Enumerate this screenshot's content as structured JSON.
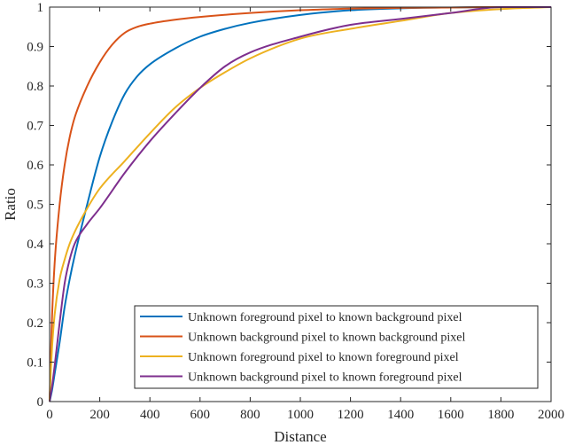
{
  "chart_data": {
    "type": "line",
    "title": "",
    "xlabel": "Distance",
    "ylabel": "Ratio",
    "xlim": [
      0,
      2000
    ],
    "ylim": [
      0,
      1
    ],
    "xticks": [
      0,
      200,
      400,
      600,
      800,
      1000,
      1200,
      1400,
      1600,
      1800,
      2000
    ],
    "yticks": [
      0,
      0.1,
      0.2,
      0.3,
      0.4,
      0.5,
      0.6,
      0.7,
      0.8,
      0.9,
      1
    ],
    "grid": false,
    "legend_position": "bottom-right",
    "series": [
      {
        "name": "Unknown foreground pixel to known background pixel",
        "color": "#0072BD",
        "x": [
          0,
          10,
          20,
          40,
          60,
          80,
          100,
          150,
          200,
          250,
          300,
          350,
          400,
          500,
          600,
          700,
          800,
          1000,
          1200,
          1400,
          1600,
          1800,
          2000
        ],
        "y": [
          0,
          0.03,
          0.07,
          0.15,
          0.24,
          0.31,
          0.37,
          0.5,
          0.62,
          0.71,
          0.78,
          0.825,
          0.855,
          0.895,
          0.925,
          0.945,
          0.96,
          0.98,
          0.992,
          0.997,
          0.999,
          1.0,
          1.0
        ]
      },
      {
        "name": "Unknown background pixel to known background pixel",
        "color": "#D95319",
        "x": [
          0,
          5,
          10,
          20,
          40,
          60,
          80,
          100,
          150,
          200,
          250,
          300,
          350,
          400,
          500,
          600,
          800,
          1000,
          1200,
          1400,
          1600,
          1800,
          2000
        ],
        "y": [
          0,
          0.12,
          0.22,
          0.35,
          0.5,
          0.6,
          0.67,
          0.72,
          0.8,
          0.86,
          0.905,
          0.935,
          0.95,
          0.958,
          0.968,
          0.975,
          0.985,
          0.992,
          0.996,
          0.998,
          0.999,
          1.0,
          1.0
        ]
      },
      {
        "name": "Unknown foreground pixel to known foreground pixel",
        "color": "#EDB120",
        "x": [
          0,
          5,
          10,
          20,
          40,
          60,
          80,
          100,
          150,
          200,
          300,
          400,
          500,
          600,
          700,
          800,
          1000,
          1200,
          1400,
          1600,
          1800,
          2000
        ],
        "y": [
          0,
          0.08,
          0.14,
          0.22,
          0.31,
          0.36,
          0.4,
          0.43,
          0.49,
          0.54,
          0.61,
          0.68,
          0.745,
          0.795,
          0.835,
          0.87,
          0.92,
          0.945,
          0.965,
          0.985,
          0.995,
          1.0
        ]
      },
      {
        "name": "Unknown background pixel to known foreground pixel",
        "color": "#7E2F8E",
        "x": [
          0,
          10,
          20,
          40,
          60,
          80,
          100,
          150,
          200,
          300,
          400,
          500,
          600,
          700,
          800,
          1000,
          1200,
          1400,
          1600,
          1800,
          2000
        ],
        "y": [
          0,
          0.04,
          0.09,
          0.2,
          0.3,
          0.36,
          0.4,
          0.45,
          0.49,
          0.58,
          0.66,
          0.73,
          0.795,
          0.85,
          0.885,
          0.925,
          0.955,
          0.97,
          0.985,
          1.0,
          1.0
        ]
      }
    ]
  }
}
